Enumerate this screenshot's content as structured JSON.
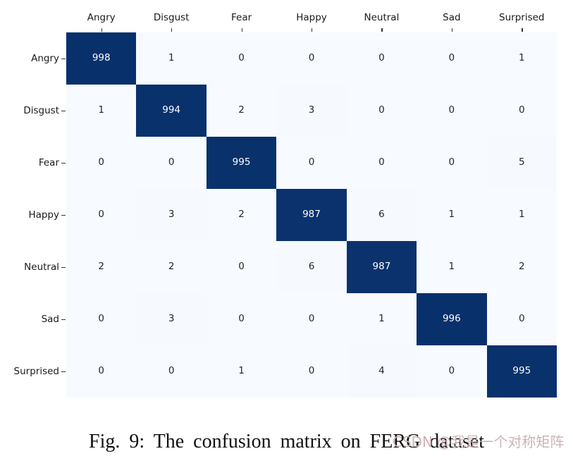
{
  "figure": {
    "caption": "Fig. 9: The confusion matrix on FERG dataset",
    "watermark": "CSDN @我是一个对称矩阵"
  },
  "chart_data": {
    "type": "heatmap",
    "title": "",
    "x_categories": [
      "Angry",
      "Disgust",
      "Fear",
      "Happy",
      "Neutral",
      "Sad",
      "Surprised"
    ],
    "y_categories": [
      "Angry",
      "Disgust",
      "Fear",
      "Happy",
      "Neutral",
      "Sad",
      "Surprised"
    ],
    "values": [
      [
        998,
        1,
        0,
        0,
        0,
        0,
        1
      ],
      [
        1,
        994,
        2,
        3,
        0,
        0,
        0
      ],
      [
        0,
        0,
        995,
        0,
        0,
        0,
        5
      ],
      [
        0,
        3,
        2,
        987,
        6,
        1,
        1
      ],
      [
        2,
        2,
        0,
        6,
        987,
        1,
        2
      ],
      [
        0,
        3,
        0,
        0,
        1,
        996,
        0
      ],
      [
        0,
        0,
        1,
        0,
        4,
        0,
        995
      ]
    ],
    "vmin": 0,
    "vmax": 998,
    "colormap": {
      "low": "#f7fbff",
      "high": "#08306b"
    },
    "annotation_colors": {
      "dark_cell_text": "#ffffff",
      "light_cell_text": "#262626"
    },
    "tick_color": "#333333",
    "label_color": "#1a1a1a",
    "legend_position": "none",
    "grid": false
  }
}
